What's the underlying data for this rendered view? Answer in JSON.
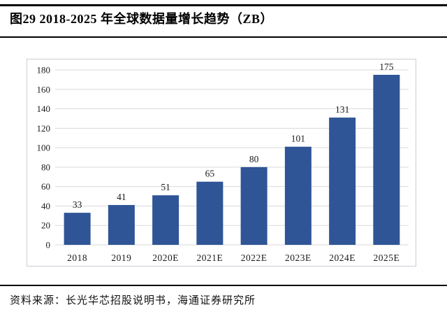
{
  "figure": {
    "title": "图29 2018-2025 年全球数据量增长趋势（ZB）",
    "source": "资料来源：长光华芯招股说明书，海通证券研究所"
  },
  "chart_data": {
    "type": "bar",
    "title": "图29 2018-2025 年全球数据量增长趋势（ZB）",
    "categories": [
      "2018",
      "2019",
      "2020E",
      "2021E",
      "2022E",
      "2023E",
      "2024E",
      "2025E"
    ],
    "values": [
      33,
      41,
      51,
      65,
      80,
      101,
      131,
      175
    ],
    "value_labels": [
      "33",
      "41",
      "51",
      "65",
      "80",
      "101",
      "131",
      "175"
    ],
    "unit": "ZB",
    "xlabel": "",
    "ylabel": "",
    "ylim": [
      0,
      180
    ],
    "yticks": [
      0,
      20,
      40,
      60,
      80,
      100,
      120,
      140,
      160,
      180
    ],
    "grid": true,
    "legend_position": "none"
  },
  "colors": {
    "bar": "#2f5597",
    "gridline": "#d9d9d9",
    "chart_border": "#c9ced6",
    "rule": "#000000",
    "text": "#1a1a1a"
  }
}
